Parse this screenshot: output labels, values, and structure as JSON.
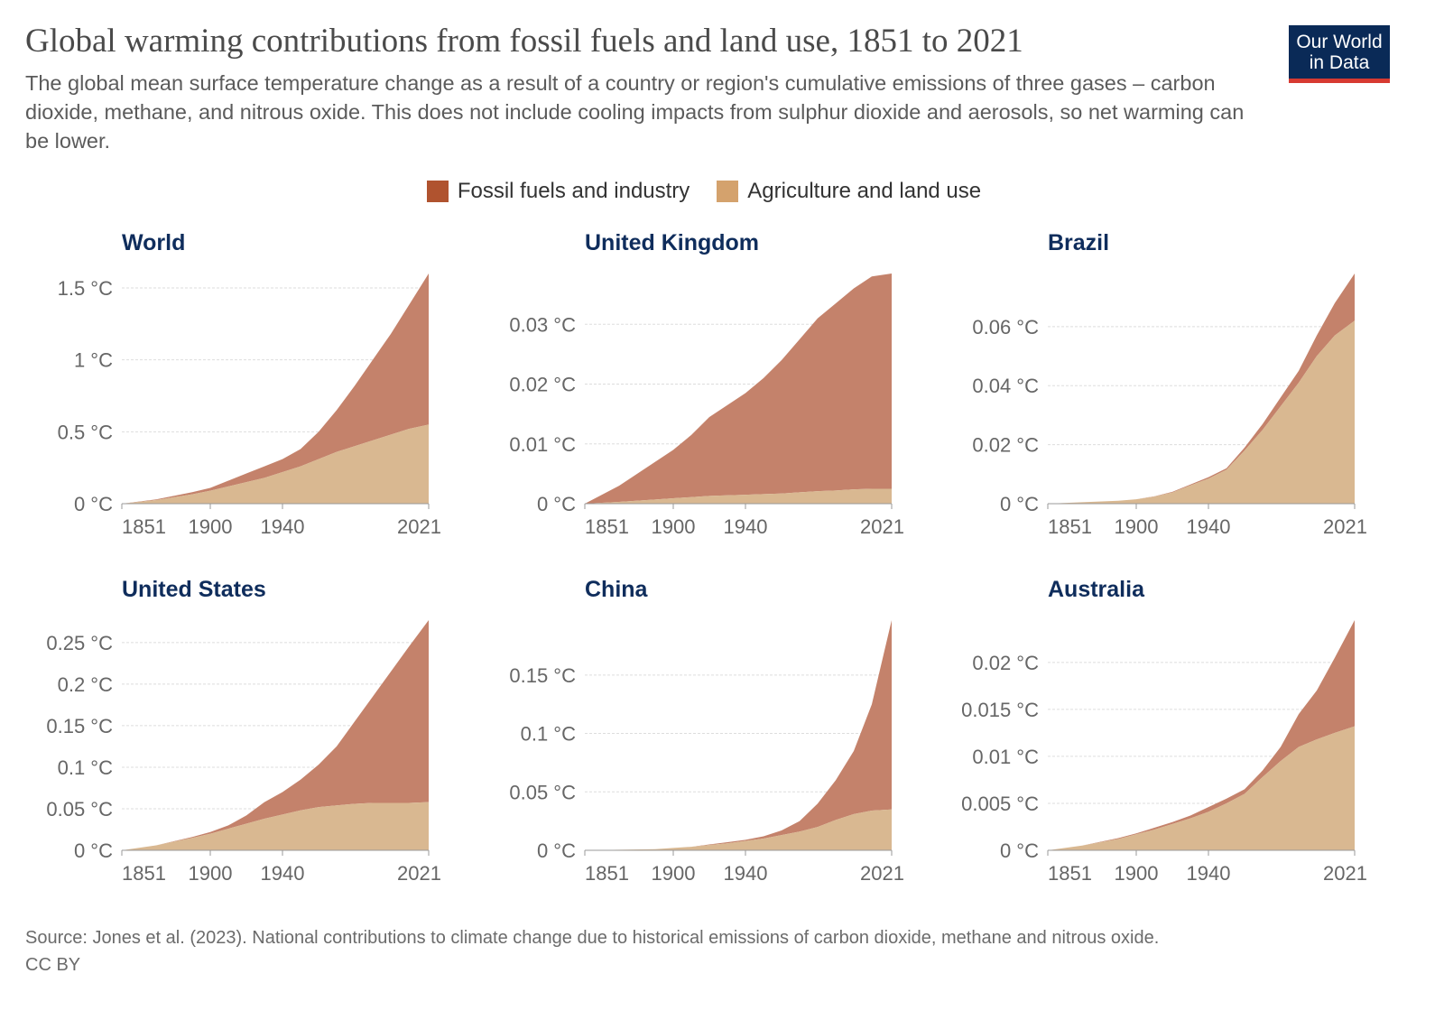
{
  "header": {
    "title": "Global warming contributions from fossil fuels and land use, 1851 to 2021",
    "subtitle": "The global mean surface temperature change as a result of a country or region's cumulative emissions of three gases – carbon dioxide, methane, and nitrous oxide. This does not include cooling impacts from sulphur dioxide and aerosols, so net warming can be lower.",
    "logo_text": "Our World in Data"
  },
  "legend": [
    {
      "label": "Fossil fuels and industry",
      "color": "#B0532F"
    },
    {
      "label": "Agriculture and land use",
      "color": "#D4A26D"
    }
  ],
  "footer": {
    "source": "Source: Jones et al. (2023). National contributions to climate change due to historical emissions of carbon dioxide, methane and nitrous oxide.",
    "license": "CC BY"
  },
  "colors": {
    "fossil_area": "#C4826B",
    "agri_area": "#D9B891",
    "title": "#0F2D5C"
  },
  "chart_data": [
    {
      "type": "area",
      "stacked": true,
      "title": "World",
      "x": [
        1851,
        1870,
        1890,
        1900,
        1910,
        1920,
        1930,
        1940,
        1950,
        1960,
        1970,
        1980,
        1990,
        2000,
        2010,
        2021
      ],
      "xticks": [
        "1851",
        "1900",
        "1940",
        "2021"
      ],
      "yticks": [
        0,
        0.5,
        1,
        1.5
      ],
      "ytick_labels": [
        "0 °C",
        "0.5 °C",
        "1 °C",
        "1.5 °C"
      ],
      "ylim": [
        0,
        1.6
      ],
      "grid": true,
      "series": [
        {
          "name": "Agriculture and land use",
          "values": [
            0,
            0.025,
            0.065,
            0.09,
            0.12,
            0.15,
            0.18,
            0.22,
            0.26,
            0.31,
            0.36,
            0.4,
            0.44,
            0.48,
            0.52,
            0.55
          ]
        },
        {
          "name": "Fossil fuels and industry",
          "values": [
            0,
            0.005,
            0.015,
            0.02,
            0.04,
            0.06,
            0.08,
            0.09,
            0.12,
            0.19,
            0.29,
            0.42,
            0.56,
            0.7,
            0.86,
            1.05
          ]
        }
      ]
    },
    {
      "type": "area",
      "stacked": true,
      "title": "United Kingdom",
      "x": [
        1851,
        1870,
        1890,
        1900,
        1910,
        1920,
        1930,
        1940,
        1950,
        1960,
        1970,
        1980,
        1990,
        2000,
        2010,
        2021
      ],
      "xticks": [
        "1851",
        "1900",
        "1940",
        "2021"
      ],
      "yticks": [
        0,
        0.01,
        0.02,
        0.03
      ],
      "ytick_labels": [
        "0 °C",
        "0.01 °C",
        "0.02 °C",
        "0.03 °C"
      ],
      "ylim": [
        0,
        0.0385
      ],
      "grid": true,
      "series": [
        {
          "name": "Agriculture and land use",
          "values": [
            0,
            0.0003,
            0.0007,
            0.0009,
            0.0011,
            0.0013,
            0.0014,
            0.0015,
            0.0016,
            0.0017,
            0.0019,
            0.0021,
            0.0022,
            0.0024,
            0.0025,
            0.0025
          ]
        },
        {
          "name": "Fossil fuels and industry",
          "values": [
            0,
            0.0027,
            0.0063,
            0.0081,
            0.0104,
            0.0132,
            0.0151,
            0.017,
            0.0194,
            0.0223,
            0.0256,
            0.0289,
            0.0313,
            0.0336,
            0.0355,
            0.036
          ]
        }
      ]
    },
    {
      "type": "area",
      "stacked": true,
      "title": "Brazil",
      "x": [
        1851,
        1870,
        1890,
        1900,
        1910,
        1920,
        1930,
        1940,
        1950,
        1960,
        1970,
        1980,
        1990,
        2000,
        2010,
        2021
      ],
      "xticks": [
        "1851",
        "1900",
        "1940",
        "2021"
      ],
      "yticks": [
        0,
        0.02,
        0.04,
        0.06
      ],
      "ytick_labels": [
        "0 °C",
        "0.02 °C",
        "0.04 °C",
        "0.06 °C"
      ],
      "ylim": [
        0,
        0.078
      ],
      "grid": true,
      "series": [
        {
          "name": "Agriculture and land use",
          "values": [
            0,
            0.0005,
            0.001,
            0.0015,
            0.0024,
            0.0038,
            0.0062,
            0.0085,
            0.0115,
            0.018,
            0.025,
            0.033,
            0.041,
            0.05,
            0.057,
            0.062
          ]
        },
        {
          "name": "Fossil fuels and industry",
          "values": [
            0,
            0,
            0,
            0,
            0.0001,
            0.0002,
            0.0003,
            0.0005,
            0.0005,
            0.001,
            0.002,
            0.003,
            0.004,
            0.007,
            0.011,
            0.016
          ]
        }
      ]
    },
    {
      "type": "area",
      "stacked": true,
      "title": "United States",
      "x": [
        1851,
        1870,
        1890,
        1900,
        1910,
        1920,
        1930,
        1940,
        1950,
        1960,
        1970,
        1980,
        1990,
        2000,
        2010,
        2021
      ],
      "xticks": [
        "1851",
        "1900",
        "1940",
        "2021"
      ],
      "yticks": [
        0,
        0.05,
        0.1,
        0.15,
        0.2,
        0.25
      ],
      "ytick_labels": [
        "0 °C",
        "0.05 °C",
        "0.1 °C",
        "0.15 °C",
        "0.2 °C",
        "0.25 °C"
      ],
      "ylim": [
        0,
        0.277
      ],
      "grid": true,
      "series": [
        {
          "name": "Agriculture and land use",
          "values": [
            0,
            0.006,
            0.015,
            0.02,
            0.026,
            0.032,
            0.038,
            0.043,
            0.048,
            0.052,
            0.054,
            0.056,
            0.057,
            0.057,
            0.057,
            0.058
          ]
        },
        {
          "name": "Fossil fuels and industry",
          "values": [
            0,
            0,
            0.001,
            0.002,
            0.004,
            0.01,
            0.02,
            0.027,
            0.037,
            0.051,
            0.071,
            0.099,
            0.128,
            0.158,
            0.188,
            0.219
          ]
        }
      ]
    },
    {
      "type": "area",
      "stacked": true,
      "title": "China",
      "x": [
        1851,
        1870,
        1890,
        1900,
        1910,
        1920,
        1930,
        1940,
        1950,
        1960,
        1970,
        1980,
        1990,
        2000,
        2010,
        2021
      ],
      "xticks": [
        "1851",
        "1900",
        "1940",
        "2021"
      ],
      "yticks": [
        0,
        0.05,
        0.1,
        0.15
      ],
      "ytick_labels": [
        "0 °C",
        "0.05 °C",
        "0.1 °C",
        "0.15 °C"
      ],
      "ylim": [
        0,
        0.197
      ],
      "grid": true,
      "series": [
        {
          "name": "Agriculture and land use",
          "values": [
            0,
            0.0005,
            0.001,
            0.002,
            0.003,
            0.0045,
            0.006,
            0.008,
            0.01,
            0.013,
            0.016,
            0.02,
            0.026,
            0.031,
            0.034,
            0.035
          ]
        },
        {
          "name": "Fossil fuels and industry",
          "values": [
            0,
            0,
            0,
            0,
            0,
            0.0005,
            0.001,
            0.001,
            0.002,
            0.004,
            0.009,
            0.02,
            0.034,
            0.054,
            0.091,
            0.162
          ]
        }
      ]
    },
    {
      "type": "area",
      "stacked": true,
      "title": "Australia",
      "x": [
        1851,
        1870,
        1890,
        1900,
        1910,
        1920,
        1930,
        1940,
        1950,
        1960,
        1970,
        1980,
        1990,
        2000,
        2010,
        2021
      ],
      "xticks": [
        "1851",
        "1900",
        "1940",
        "2021"
      ],
      "yticks": [
        0,
        0.005,
        0.01,
        0.015,
        0.02
      ],
      "ytick_labels": [
        "0 °C",
        "0.005 °C",
        "0.01 °C",
        "0.015 °C",
        "0.02 °C"
      ],
      "ylim": [
        0,
        0.0245
      ],
      "grid": true,
      "series": [
        {
          "name": "Agriculture and land use",
          "values": [
            0,
            0.0005,
            0.0012,
            0.0017,
            0.0022,
            0.0028,
            0.0034,
            0.0041,
            0.005,
            0.006,
            0.0078,
            0.0095,
            0.011,
            0.0118,
            0.0125,
            0.0132
          ]
        },
        {
          "name": "Fossil fuels and industry",
          "values": [
            0,
            0,
            0.0001,
            0.0001,
            0.0002,
            0.0002,
            0.0003,
            0.0005,
            0.0005,
            0.0005,
            0.0007,
            0.0015,
            0.0035,
            0.0052,
            0.008,
            0.0113
          ]
        }
      ]
    }
  ]
}
